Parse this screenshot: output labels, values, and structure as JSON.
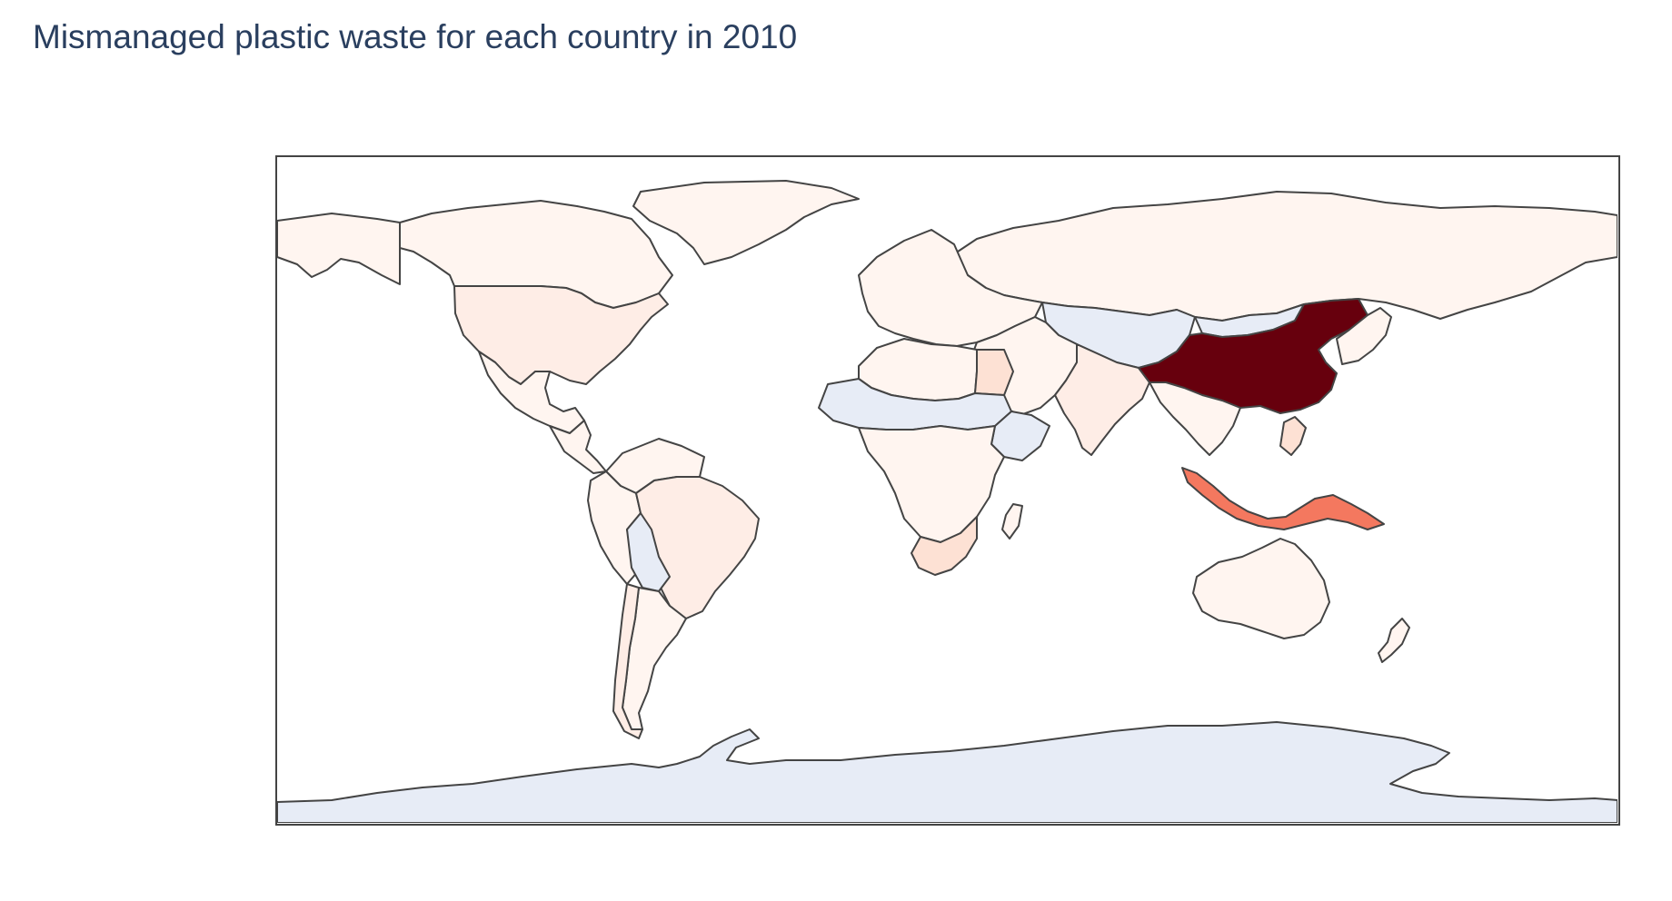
{
  "title": "Mismanaged plastic waste for each country in 2010",
  "map": {
    "projection": "equirectangular",
    "colorscale": "Reds",
    "colors": {
      "background": "#ffffff",
      "border": "#444444",
      "none": "#e7ecf6",
      "very_low": "#fff5f0",
      "low": "#feede6",
      "mid_low": "#fde1d4",
      "medium": "#f4785f",
      "very_high": "#67000d"
    },
    "countries": [
      {
        "name": "Russia",
        "level": "very_low"
      },
      {
        "name": "Canada",
        "level": "very_low"
      },
      {
        "name": "Alaska",
        "level": "very_low"
      },
      {
        "name": "Greenland",
        "level": "very_low"
      },
      {
        "name": "United States",
        "level": "low"
      },
      {
        "name": "Mexico",
        "level": "very_low"
      },
      {
        "name": "Brazil",
        "level": "low"
      },
      {
        "name": "Argentina",
        "level": "very_low"
      },
      {
        "name": "Chile",
        "level": "low"
      },
      {
        "name": "Peru",
        "level": "very_low"
      },
      {
        "name": "Colombia",
        "level": "very_low"
      },
      {
        "name": "Bolivia",
        "level": "none"
      },
      {
        "name": "China",
        "level": "very_high"
      },
      {
        "name": "Indonesia",
        "level": "medium"
      },
      {
        "name": "India",
        "level": "low"
      },
      {
        "name": "Kazakhstan",
        "level": "none"
      },
      {
        "name": "Mongolia",
        "level": "none"
      },
      {
        "name": "Australia",
        "level": "very_low"
      },
      {
        "name": "Egypt",
        "level": "mid_low"
      },
      {
        "name": "Algeria",
        "level": "very_low"
      },
      {
        "name": "Sahel",
        "level": "none"
      },
      {
        "name": "Ethiopia",
        "level": "none"
      },
      {
        "name": "South Africa",
        "level": "mid_low"
      },
      {
        "name": "Antarctica",
        "level": "none"
      }
    ]
  }
}
